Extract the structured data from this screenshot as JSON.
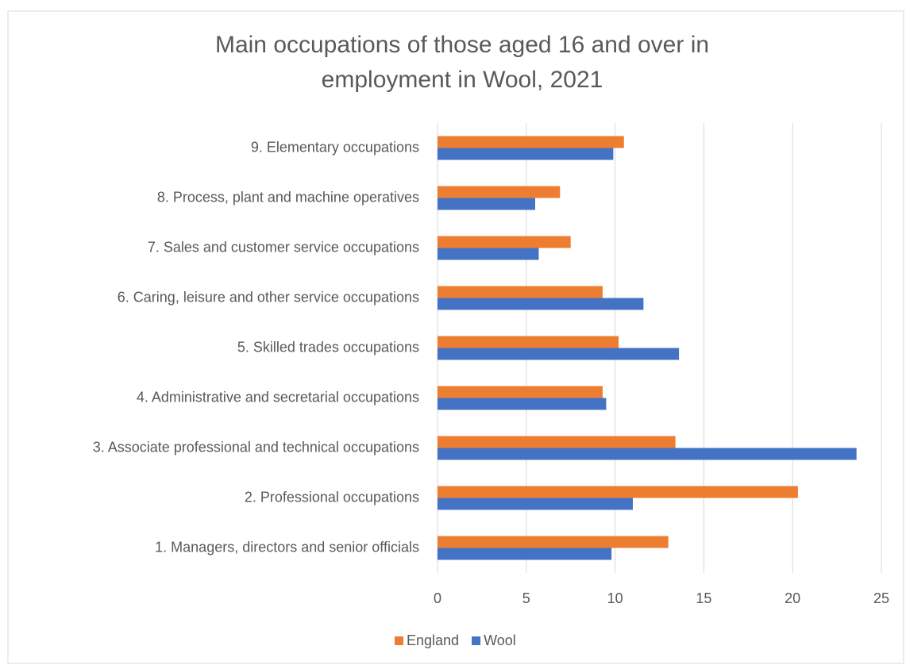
{
  "chart_data": {
    "type": "barh",
    "title": [
      "Main occupations of those aged 16 and over in",
      "employment in Wool, 2021"
    ],
    "categories": [
      "1. Managers, directors and senior officials",
      "2. Professional occupations",
      "3. Associate professional and technical occupations",
      "4. Administrative and secretarial occupations",
      "5. Skilled trades occupations",
      "6. Caring, leisure and other service occupations",
      "7. Sales and customer service occupations",
      "8. Process, plant and machine operatives",
      "9. Elementary occupations"
    ],
    "series": [
      {
        "name": "England",
        "color": "#ed7d31",
        "values": [
          13.0,
          20.3,
          13.4,
          9.3,
          10.2,
          9.3,
          7.5,
          6.9,
          10.5
        ]
      },
      {
        "name": "Wool",
        "color": "#4472c4",
        "values": [
          9.8,
          11.0,
          23.6,
          9.5,
          13.6,
          11.6,
          5.7,
          5.5,
          9.9
        ]
      }
    ],
    "xlim": [
      0,
      25
    ],
    "xticks": [
      0,
      5,
      10,
      15,
      20,
      25
    ],
    "grid": true,
    "legend": "bottom"
  }
}
